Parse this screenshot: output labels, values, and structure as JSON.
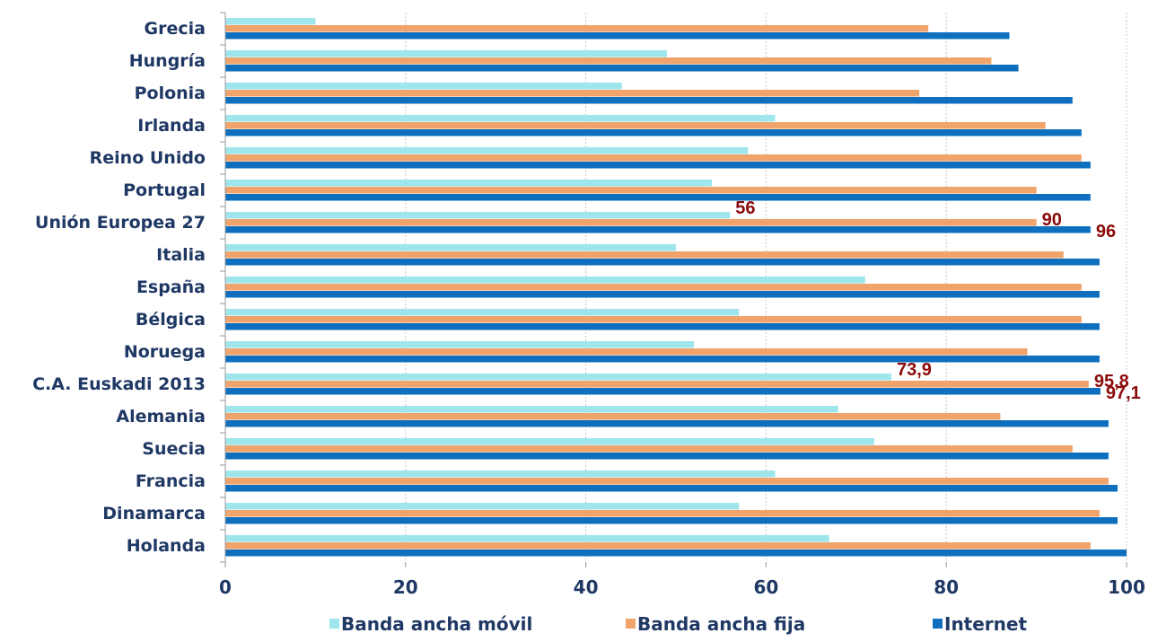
{
  "chart_data": {
    "type": "bar",
    "orientation": "horizontal",
    "categories": [
      "Grecia",
      "Hungría",
      "Polonia",
      "Irlanda",
      "Reino Unido",
      "Portugal",
      "Unión Europea 27",
      "Italia",
      "España",
      "Bélgica",
      "Noruega",
      "C.A. Euskadi 2013",
      "Alemania",
      "Suecia",
      "Francia",
      "Dinamarca",
      "Holanda"
    ],
    "series": [
      {
        "name": "Banda ancha móvil",
        "color": "#9ee6ec",
        "values": [
          10,
          49,
          44,
          61,
          58,
          54,
          56,
          50,
          71,
          57,
          52,
          73.9,
          68,
          72,
          61,
          57,
          67
        ]
      },
      {
        "name": "Banda ancha fija",
        "color": "#f0a36a",
        "values": [
          78,
          85,
          77,
          91,
          95,
          90,
          90,
          93,
          95,
          95,
          89,
          95.8,
          86,
          94,
          98,
          97,
          96
        ]
      },
      {
        "name": "Internet",
        "color": "#0e6fbe",
        "values": [
          87,
          88,
          94,
          95,
          96,
          96,
          96,
          97,
          97,
          97,
          97,
          97.1,
          98,
          98,
          99,
          99,
          100
        ]
      }
    ],
    "data_labels": [
      {
        "category": "Unión Europea 27",
        "series": 0,
        "text": "56"
      },
      {
        "category": "Unión Europea 27",
        "series": 1,
        "text": "90"
      },
      {
        "category": "Unión Europea 27",
        "series": 2,
        "text": "96"
      },
      {
        "category": "C.A. Euskadi 2013",
        "series": 0,
        "text": "73,9"
      },
      {
        "category": "C.A. Euskadi 2013",
        "series": 1,
        "text": "95,8"
      },
      {
        "category": "C.A. Euskadi 2013",
        "series": 2,
        "text": "97,1"
      }
    ],
    "xticks": [
      "0",
      "20",
      "40",
      "60",
      "80",
      "100"
    ],
    "xlim": [
      0,
      100
    ],
    "grid": "vertical dotted",
    "legend_position": "bottom"
  }
}
